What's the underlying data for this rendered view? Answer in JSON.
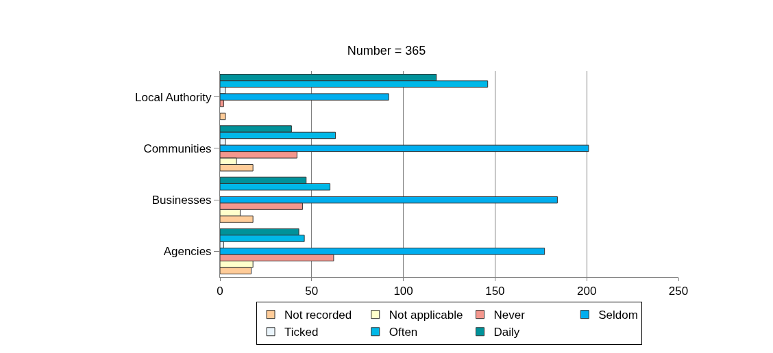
{
  "chart_data": {
    "type": "bar",
    "orientation": "horizontal",
    "title": "Number = 365",
    "categories": [
      "Local Authority",
      "Communities",
      "Businesses",
      "Agencies"
    ],
    "series": [
      {
        "name": "Not recorded",
        "color": "#ffcc99",
        "values": [
          3,
          18,
          18,
          17
        ]
      },
      {
        "name": "Not applicable",
        "color": "#ffffcc",
        "values": [
          null,
          9,
          11,
          18
        ]
      },
      {
        "name": "Never",
        "color": "#f4978e",
        "values": [
          2,
          42,
          45,
          62
        ]
      },
      {
        "name": "Seldom",
        "color": "#00aeef",
        "values": [
          92,
          201,
          184,
          177
        ]
      },
      {
        "name": "Ticked",
        "color": "#eaf4fb",
        "values": [
          3,
          3,
          null,
          2
        ]
      },
      {
        "name": "Often",
        "color": "#00b8e8",
        "values": [
          146,
          63,
          60,
          46
        ]
      },
      {
        "name": "Daily",
        "color": "#00929a",
        "values": [
          118,
          39,
          47,
          43
        ]
      }
    ],
    "xlim": [
      0,
      250
    ],
    "xticks": [
      0,
      50,
      100,
      150,
      200,
      250
    ],
    "grid": "x",
    "legend": "bottom"
  }
}
